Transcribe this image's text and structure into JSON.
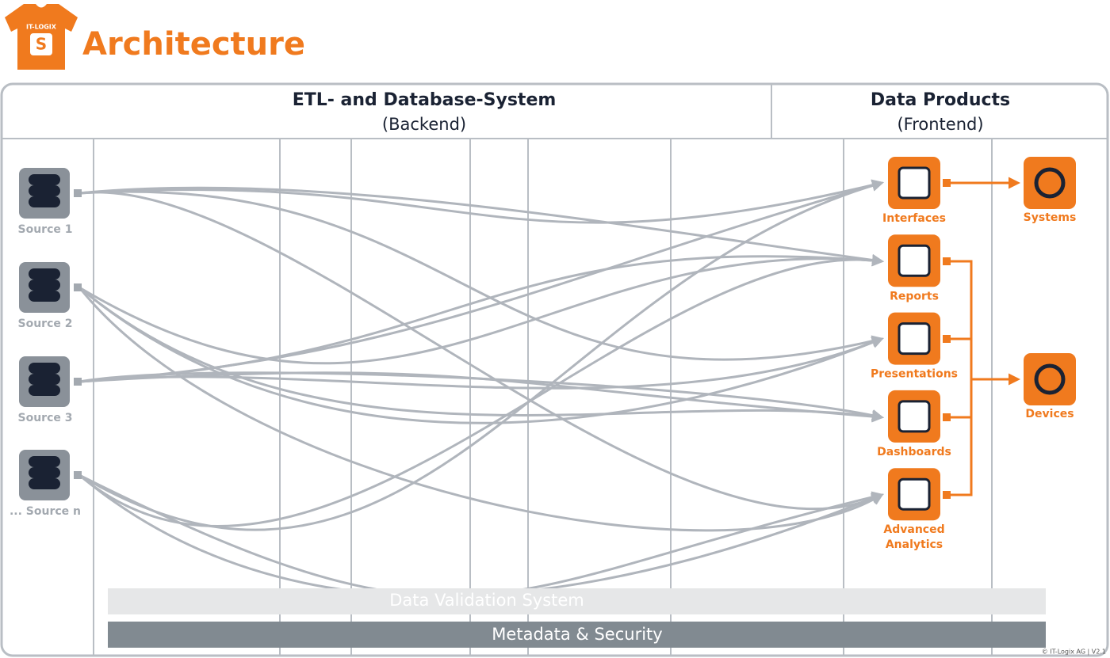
{
  "logo": {
    "badge": "IT-LOGIX",
    "letter": "S"
  },
  "title": "Architecture",
  "header": {
    "backend": {
      "title": "ETL- and Database-System",
      "subtitle": "(Backend)"
    },
    "frontend": {
      "title": "Data Products",
      "subtitle": "(Frontend)"
    }
  },
  "sources": [
    "Source 1",
    "Source 2",
    "Source 3",
    "... Source n"
  ],
  "products": [
    "Interfaces",
    "Reports",
    "Presentations",
    "Dashboards",
    [
      "Advanced",
      "Analytics"
    ]
  ],
  "outputs": [
    "Systems",
    "Devices"
  ],
  "layers": [
    "Data Validation System",
    "Metadata & Security"
  ],
  "footer": "© IT-Logix AG | V2.1"
}
